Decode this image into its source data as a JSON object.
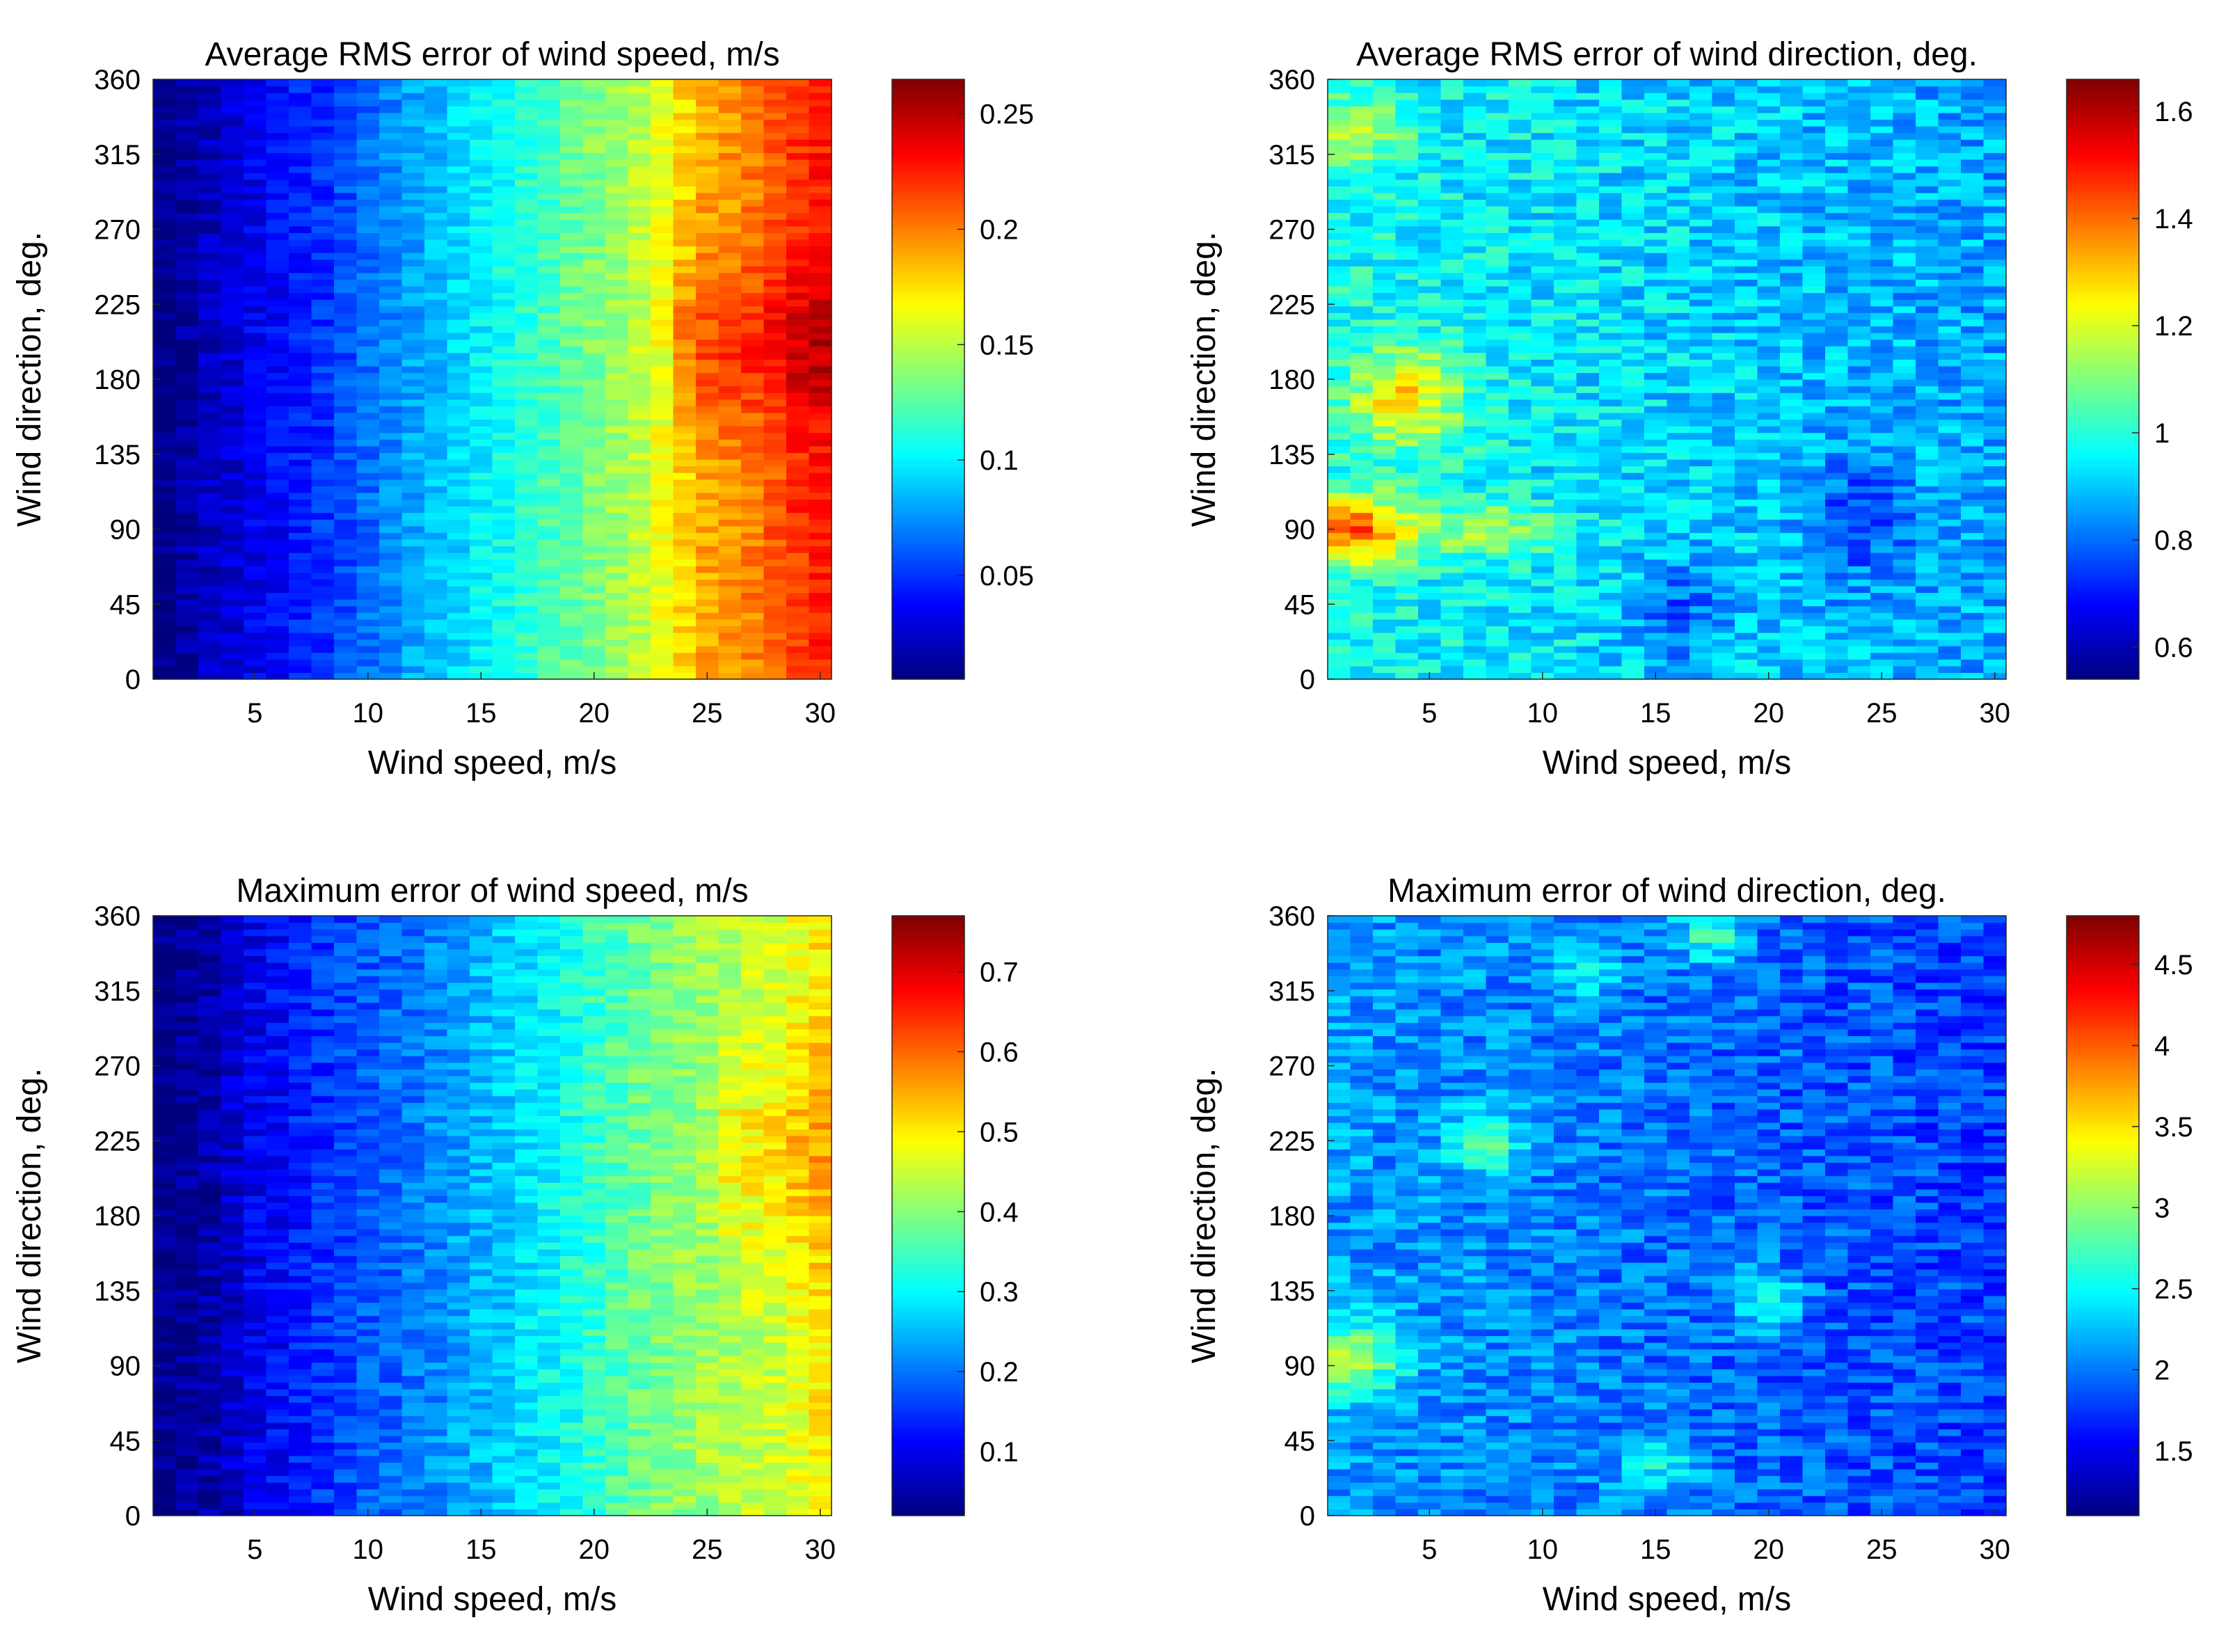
{
  "figure": {
    "layout": "2x2 grid of heatmaps"
  },
  "colormap": {
    "name": "jet",
    "stops": [
      "#00007f",
      "#0000ff",
      "#007fff",
      "#00ffff",
      "#7fff7f",
      "#ffff00",
      "#ff7f00",
      "#ff0000",
      "#7f0000"
    ]
  },
  "chart_data": [
    {
      "type": "heatmap",
      "title": "Average RMS error of wind speed, m/s",
      "xlabel": "Wind speed, m/s",
      "ylabel": "Wind direction, deg.",
      "xlim": [
        1,
        30
      ],
      "ylim": [
        0,
        360
      ],
      "xticks": [
        "5",
        "10",
        "15",
        "20",
        "25",
        "30"
      ],
      "xtick_values": [
        5,
        10,
        15,
        20,
        25,
        30
      ],
      "yticks": [
        "0",
        "45",
        "90",
        "135",
        "180",
        "225",
        "270",
        "315",
        "360"
      ],
      "ytick_values": [
        0,
        45,
        90,
        135,
        180,
        225,
        270,
        315,
        360
      ],
      "colorbar": {
        "range": [
          0.005,
          0.265
        ],
        "ticks": [
          "0.05",
          "0.1",
          "0.15",
          "0.2",
          "0.25"
        ],
        "tick_values": [
          0.05,
          0.1,
          0.15,
          0.2,
          0.25
        ]
      },
      "trend": {
        "kind": "speed",
        "x_profile": [
          [
            1,
            0.005
          ],
          [
            3,
            0.02
          ],
          [
            5,
            0.033
          ],
          [
            8,
            0.05
          ],
          [
            10,
            0.065
          ],
          [
            12,
            0.08
          ],
          [
            15,
            0.1
          ],
          [
            18,
            0.12
          ],
          [
            20,
            0.135
          ],
          [
            22,
            0.15
          ],
          [
            25,
            0.19
          ],
          [
            27,
            0.2
          ],
          [
            29,
            0.22
          ],
          [
            30,
            0.225
          ]
        ],
        "band": {
          "y_center": 200,
          "y_width": 45,
          "x_from": 24,
          "amplitude": 0.025
        },
        "noise": 0.012,
        "seed": 7
      }
    },
    {
      "type": "heatmap",
      "title": "Average RMS error of wind direction, deg.",
      "xlabel": "Wind speed, m/s",
      "ylabel": "Wind direction, deg.",
      "xlim": [
        1,
        30
      ],
      "ylim": [
        0,
        360
      ],
      "xticks": [
        "5",
        "10",
        "15",
        "20",
        "25",
        "30"
      ],
      "xtick_values": [
        5,
        10,
        15,
        20,
        25,
        30
      ],
      "yticks": [
        "0",
        "45",
        "90",
        "135",
        "180",
        "225",
        "270",
        "315",
        "360"
      ],
      "yticks_values_note": "",
      "ytick_values": [
        0,
        45,
        90,
        135,
        180,
        225,
        270,
        315,
        360
      ],
      "colorbar": {
        "range": [
          0.54,
          1.66
        ],
        "ticks": [
          "0.6",
          "0.8",
          "1",
          "1.2",
          "1.4",
          "1.6"
        ],
        "tick_values": [
          0.6,
          0.8,
          1.0,
          1.2,
          1.4,
          1.6
        ]
      },
      "trend": {
        "kind": "direction",
        "base": 0.98,
        "x_slope": -0.004,
        "hotspots": [
          [
            1.5,
            90,
            3,
            20,
            0.45
          ],
          [
            4,
            170,
            2.5,
            30,
            0.3
          ],
          [
            8,
            90,
            3,
            15,
            0.2
          ],
          [
            2,
            330,
            2,
            20,
            0.2
          ],
          [
            16,
            40,
            2,
            30,
            -0.15
          ],
          [
            24,
            100,
            2,
            40,
            -0.15
          ]
        ],
        "noise": 0.09,
        "seed": 11
      }
    },
    {
      "type": "heatmap",
      "title": "Maximum error of wind speed, m/s",
      "xlabel": "Wind speed, m/s",
      "ylabel": "Wind direction, deg.",
      "xlim": [
        1,
        30
      ],
      "ylim": [
        0,
        360
      ],
      "xticks": [
        "5",
        "10",
        "15",
        "20",
        "25",
        "30"
      ],
      "xtick_values": [
        5,
        10,
        15,
        20,
        25,
        30
      ],
      "yticks": [
        "0",
        "45",
        "90",
        "135",
        "180",
        "225",
        "270",
        "315",
        "360"
      ],
      "ytick_values": [
        0,
        45,
        90,
        135,
        180,
        225,
        270,
        315,
        360
      ],
      "colorbar": {
        "range": [
          0.02,
          0.77
        ],
        "ticks": [
          "0.1",
          "0.2",
          "0.3",
          "0.4",
          "0.5",
          "0.6",
          "0.7"
        ],
        "tick_values": [
          0.1,
          0.2,
          0.3,
          0.4,
          0.5,
          0.6,
          0.7
        ]
      },
      "trend": {
        "kind": "speed",
        "x_profile": [
          [
            1,
            0.02
          ],
          [
            3,
            0.05
          ],
          [
            5,
            0.1
          ],
          [
            8,
            0.15
          ],
          [
            10,
            0.18
          ],
          [
            12,
            0.2
          ],
          [
            15,
            0.25
          ],
          [
            18,
            0.3
          ],
          [
            20,
            0.34
          ],
          [
            22,
            0.38
          ],
          [
            25,
            0.42
          ],
          [
            28,
            0.45
          ],
          [
            30,
            0.5
          ]
        ],
        "band": {
          "y_center": 220,
          "y_width": 60,
          "x_from": 26,
          "amplitude": 0.06
        },
        "noise": 0.04,
        "seed": 23
      }
    },
    {
      "type": "heatmap",
      "title": "Maximum error of wind direction, deg.",
      "xlabel": "Wind speed, m/s",
      "ylabel": "Wind direction, deg.",
      "xlim": [
        1,
        30
      ],
      "ylim": [
        0,
        360
      ],
      "xticks": [
        "5",
        "10",
        "15",
        "20",
        "25",
        "30"
      ],
      "xtick_values": [
        5,
        10,
        15,
        20,
        25,
        30
      ],
      "yticks": [
        "0",
        "45",
        "90",
        "135",
        "180",
        "225",
        "270",
        "315",
        "360"
      ],
      "ytick_values": [
        0,
        45,
        90,
        135,
        180,
        225,
        270,
        315,
        360
      ],
      "colorbar": {
        "range": [
          1.1,
          4.8
        ],
        "ticks": [
          "1.5",
          "2",
          "2.5",
          "3",
          "3.5",
          "4",
          "4.5"
        ],
        "tick_values": [
          1.5,
          2.0,
          2.5,
          3.0,
          3.5,
          4.0,
          4.5
        ]
      },
      "trend": {
        "kind": "direction",
        "base": 2.15,
        "x_slope": -0.012,
        "hotspots": [
          [
            1.5,
            95,
            2.5,
            25,
            0.9
          ],
          [
            7.5,
            225,
            1.5,
            20,
            0.8
          ],
          [
            17.5,
            350,
            1.5,
            20,
            0.7
          ],
          [
            20,
            130,
            1.5,
            20,
            0.6
          ],
          [
            15,
            30,
            2,
            20,
            0.5
          ],
          [
            12,
            330,
            1.5,
            20,
            0.5
          ]
        ],
        "noise": 0.28,
        "seed": 31
      }
    }
  ]
}
